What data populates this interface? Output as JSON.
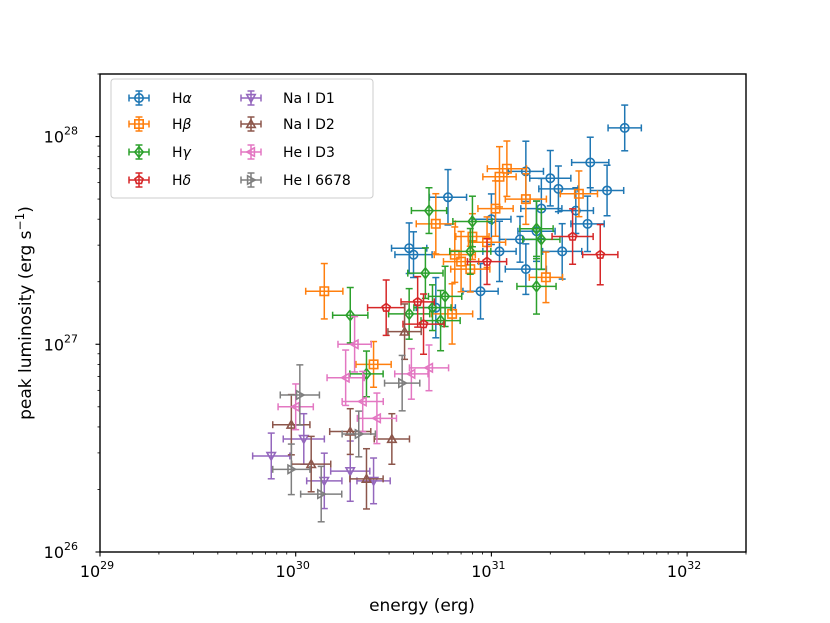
{
  "chart_data": {
    "type": "scatter",
    "title": "",
    "xlabel": "energy (erg)",
    "ylabel_main": "peak luminosity (erg s",
    "ylabel_sup": "−1",
    "ylabel_end": ")",
    "xscale": "log",
    "yscale": "log",
    "xlim": [
      1e+29,
      2e+32
    ],
    "ylim": [
      1e+26,
      2e+28
    ],
    "grid": false,
    "legend_position": "top-left",
    "x_ticks": [
      {
        "value": 1e+29,
        "base": "10",
        "exp": "29"
      },
      {
        "value": 1e+30,
        "base": "10",
        "exp": "30"
      },
      {
        "value": 1e+31,
        "base": "10",
        "exp": "31"
      },
      {
        "value": 1e+32,
        "base": "10",
        "exp": "32"
      }
    ],
    "y_ticks": [
      {
        "value": 1e+26,
        "base": "10",
        "exp": "26"
      },
      {
        "value": 1e+27,
        "base": "10",
        "exp": "27"
      },
      {
        "value": 1e+28,
        "base": "10",
        "exp": "28"
      }
    ],
    "series": [
      {
        "name": "Hα",
        "label_main": "H",
        "label_greek": "α",
        "color": "#1f77b4",
        "marker": "circle",
        "points": [
          [
            4.8e+31,
            1.1e+28
          ],
          [
            3.2e+31,
            7.5e+27
          ],
          [
            2e+31,
            6.3e+27
          ],
          [
            1.5e+31,
            6.8e+27
          ],
          [
            2.2e+31,
            5.6e+27
          ],
          [
            3.9e+31,
            5.5e+27
          ],
          [
            6e+30,
            5.1e+27
          ],
          [
            1.8e+31,
            4.5e+27
          ],
          [
            2.7e+31,
            4.4e+27
          ],
          [
            1e+31,
            4e+27
          ],
          [
            3.1e+31,
            3.8e+27
          ],
          [
            1.7e+31,
            3.5e+27
          ],
          [
            1.4e+31,
            3.2e+27
          ],
          [
            3.8e+30,
            2.9e+27
          ],
          [
            2.3e+31,
            2.8e+27
          ],
          [
            1.1e+31,
            2.8e+27
          ],
          [
            4e+30,
            2.7e+27
          ],
          [
            1.5e+31,
            2.3e+27
          ],
          [
            8.8e+30,
            1.8e+27
          ],
          [
            5.2e+30,
            1.5e+27
          ]
        ]
      },
      {
        "name": "Hβ",
        "label_main": "H",
        "label_greek": "β",
        "color": "#ff7f0e",
        "marker": "square",
        "points": [
          [
            1.2e+31,
            7e+27
          ],
          [
            1.1e+31,
            6.4e+27
          ],
          [
            2.8e+31,
            5.3e+27
          ],
          [
            1.5e+31,
            5e+27
          ],
          [
            1.05e+31,
            4.5e+27
          ],
          [
            5.2e+30,
            3.8e+27
          ],
          [
            8e+30,
            3.3e+27
          ],
          [
            9.5e+30,
            3.1e+27
          ],
          [
            6.5e+30,
            2.7e+27
          ],
          [
            7e+30,
            2.5e+27
          ],
          [
            7.8e+30,
            2.3e+27
          ],
          [
            1.9e+31,
            2.1e+27
          ],
          [
            1.4e+30,
            1.8e+27
          ],
          [
            6.3e+30,
            1.4e+27
          ],
          [
            2.5e+30,
            8e+26
          ]
        ]
      },
      {
        "name": "Hγ",
        "label_main": "H",
        "label_greek": "γ",
        "color": "#2ca02c",
        "marker": "diamond",
        "points": [
          [
            4.8e+30,
            4.4e+27
          ],
          [
            8e+30,
            3.9e+27
          ],
          [
            1.7e+31,
            3.6e+27
          ],
          [
            1.8e+31,
            3.2e+27
          ],
          [
            7.8e+30,
            2.8e+27
          ],
          [
            4.6e+30,
            2.2e+27
          ],
          [
            1.7e+31,
            1.9e+27
          ],
          [
            5.8e+30,
            1.7e+27
          ],
          [
            5e+30,
            1.5e+27
          ],
          [
            3.8e+30,
            1.4e+27
          ],
          [
            1.9e+30,
            1.38e+27
          ],
          [
            5.5e+30,
            1.3e+27
          ],
          [
            2.3e+30,
            7.2e+26
          ]
        ]
      },
      {
        "name": "Hδ",
        "label_main": "H",
        "label_greek": "δ",
        "color": "#d62728",
        "marker": "pentagon",
        "points": [
          [
            2.6e+31,
            3.3e+27
          ],
          [
            3.6e+31,
            2.7e+27
          ],
          [
            9.5e+30,
            2.5e+27
          ],
          [
            4.2e+30,
            1.6e+27
          ],
          [
            2.9e+30,
            1.5e+27
          ],
          [
            4.5e+30,
            1.25e+27
          ]
        ]
      },
      {
        "name": "Na I D1",
        "label_main": "Na I D1",
        "label_greek": "",
        "color": "#9467bd",
        "marker": "triangle-down",
        "points": [
          [
            7.5e+29,
            2.9e+26
          ],
          [
            1.1e+30,
            3.5e+26
          ],
          [
            1.4e+30,
            2.2e+26
          ],
          [
            1.9e+30,
            2.45e+26
          ],
          [
            2.5e+30,
            2.2e+26
          ]
        ]
      },
      {
        "name": "Na I D2",
        "label_main": "Na I D2",
        "label_greek": "",
        "color": "#8c564b",
        "marker": "triangle-up",
        "points": [
          [
            3.6e+30,
            1.15e+27
          ],
          [
            9.5e+29,
            4.1e+26
          ],
          [
            1.9e+30,
            3.8e+26
          ],
          [
            3.1e+30,
            3.5e+26
          ],
          [
            1.2e+30,
            2.65e+26
          ],
          [
            2.3e+30,
            2.25e+26
          ]
        ]
      },
      {
        "name": "He I D3",
        "label_main": "He I D3",
        "label_greek": "",
        "color": "#e377c2",
        "marker": "triangle-left",
        "points": [
          [
            4.8e+30,
            7.7e+26
          ],
          [
            3.9e+30,
            7.2e+26
          ],
          [
            1.8e+30,
            6.9e+26
          ],
          [
            2.2e+30,
            5.3e+26
          ],
          [
            1e+30,
            5e+26
          ],
          [
            2.6e+30,
            4.4e+26
          ],
          [
            2e+30,
            1e+27
          ]
        ]
      },
      {
        "name": "He I 6678",
        "label_main": "He I 6678",
        "label_greek": "",
        "color": "#7f7f7f",
        "marker": "triangle-right",
        "points": [
          [
            3.5e+30,
            6.5e+26
          ],
          [
            1.05e+30,
            5.7e+26
          ],
          [
            2.1e+30,
            3.7e+26
          ],
          [
            9.5e+29,
            2.5e+26
          ],
          [
            1.35e+30,
            1.9e+26
          ]
        ]
      }
    ]
  }
}
